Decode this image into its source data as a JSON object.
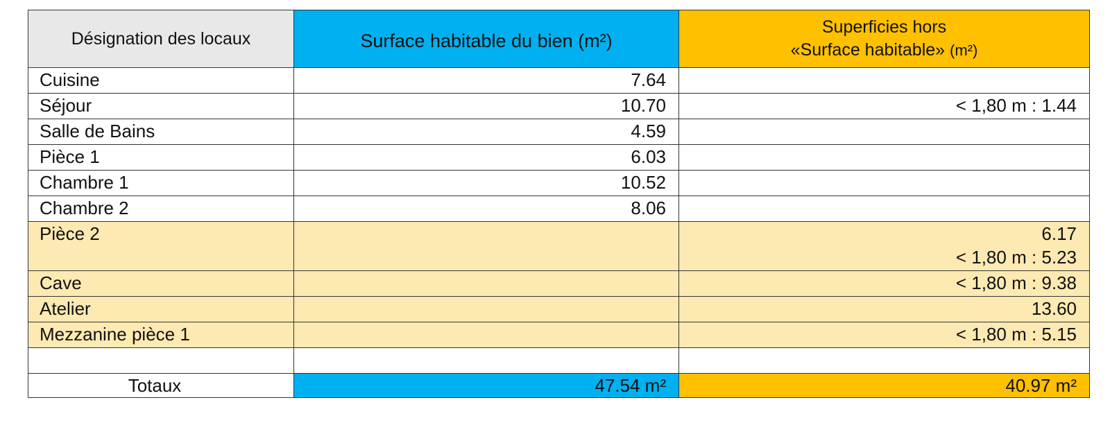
{
  "headers": {
    "designation": "Désignation des locaux",
    "surface_habitable": "Surface habitable du bien (m²)",
    "hors_line1": "Superficies hors",
    "hors_line2_text": "«Surface habitable»",
    "hors_line2_unit": "(m²)"
  },
  "rows": [
    {
      "name": "Cuisine",
      "habitable": "7.64",
      "hors": ""
    },
    {
      "name": "Séjour",
      "habitable": "10.70",
      "hors": "< 1,80 m : 1.44"
    },
    {
      "name": "Salle de Bains",
      "habitable": "4.59",
      "hors": ""
    },
    {
      "name": "Pièce 1",
      "habitable": "6.03",
      "hors": ""
    },
    {
      "name": "Chambre 1",
      "habitable": "10.52",
      "hors": ""
    },
    {
      "name": "Chambre 2",
      "habitable": "8.06",
      "hors": ""
    },
    {
      "name": "Pièce 2",
      "habitable": "",
      "hors": "6.17",
      "hors2": "< 1,80 m : 5.23"
    },
    {
      "name": "Cave",
      "habitable": "",
      "hors": "< 1,80 m : 9.38"
    },
    {
      "name": "Atelier",
      "habitable": "",
      "hors": "13.60"
    },
    {
      "name": "Mezzanine pièce 1",
      "habitable": "",
      "hors": "< 1,80 m : 5.15"
    }
  ],
  "totals": {
    "label": "Totaux",
    "habitable": "47.54 m²",
    "hors": "40.97 m²"
  },
  "colors": {
    "header_grey": "#e8e8e8",
    "blue": "#00b0f0",
    "amber": "#ffc000",
    "light_amber": "#fde9b2"
  }
}
